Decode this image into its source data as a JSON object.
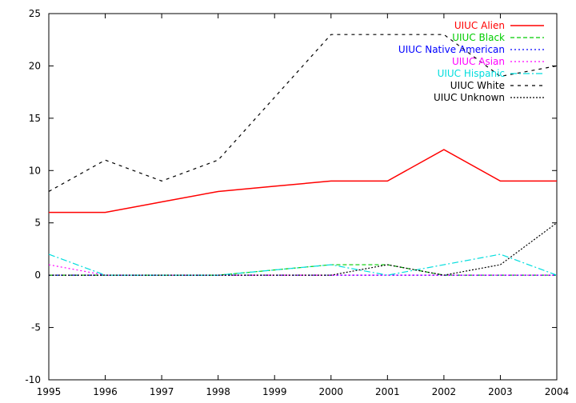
{
  "chart_data": {
    "type": "line",
    "title": "",
    "xlabel": "",
    "ylabel": "",
    "xlim": [
      1995,
      2004
    ],
    "ylim": [
      -10,
      25
    ],
    "grid": false,
    "legend_position": "top-right",
    "x": [
      1995,
      1996,
      1997,
      1998,
      1999,
      2000,
      2001,
      2002,
      2003,
      2004
    ],
    "x_ticks": [
      "1995",
      "1996",
      "1997",
      "1998",
      "1999",
      "2000",
      "2001",
      "2002",
      "2003",
      "2004"
    ],
    "y_ticks": [
      "-10",
      "-5",
      "0",
      "5",
      "10",
      "15",
      "20",
      "25"
    ],
    "series": [
      {
        "name": "UIUC Alien",
        "color": "#ff0000",
        "dash": "solid",
        "values": [
          6,
          6,
          7,
          8,
          8.5,
          9,
          9,
          12,
          9,
          9
        ]
      },
      {
        "name": "UIUC Black",
        "color": "#00cc00",
        "dash": "dashed",
        "values": [
          0,
          0,
          0,
          0,
          0.5,
          1,
          1,
          0,
          0,
          0
        ]
      },
      {
        "name": "UIUC Native American",
        "color": "#0000ff",
        "dash": "dotted",
        "values": [
          0,
          0,
          0,
          0,
          0,
          0,
          0,
          0,
          0,
          0
        ]
      },
      {
        "name": "UIUC Asian",
        "color": "#ff00ff",
        "dash": "dotted",
        "values": [
          1,
          0,
          0,
          0,
          0,
          0,
          0,
          0,
          0,
          0
        ]
      },
      {
        "name": "UIUC Hispanic",
        "color": "#00dddd",
        "dash": "dashdot",
        "values": [
          2,
          0,
          0,
          0,
          0.5,
          1,
          0,
          1,
          2,
          0
        ]
      },
      {
        "name": "UIUC White",
        "color": "#000000",
        "dash": "light-dashed",
        "values": [
          8,
          11,
          9,
          11,
          17,
          23,
          23,
          23,
          19,
          20
        ]
      },
      {
        "name": "UIUC Unknown",
        "color": "#000000",
        "dash": "dense-dotted",
        "values": [
          0,
          0,
          0,
          0,
          0,
          0,
          1,
          0,
          1,
          5
        ]
      }
    ]
  }
}
